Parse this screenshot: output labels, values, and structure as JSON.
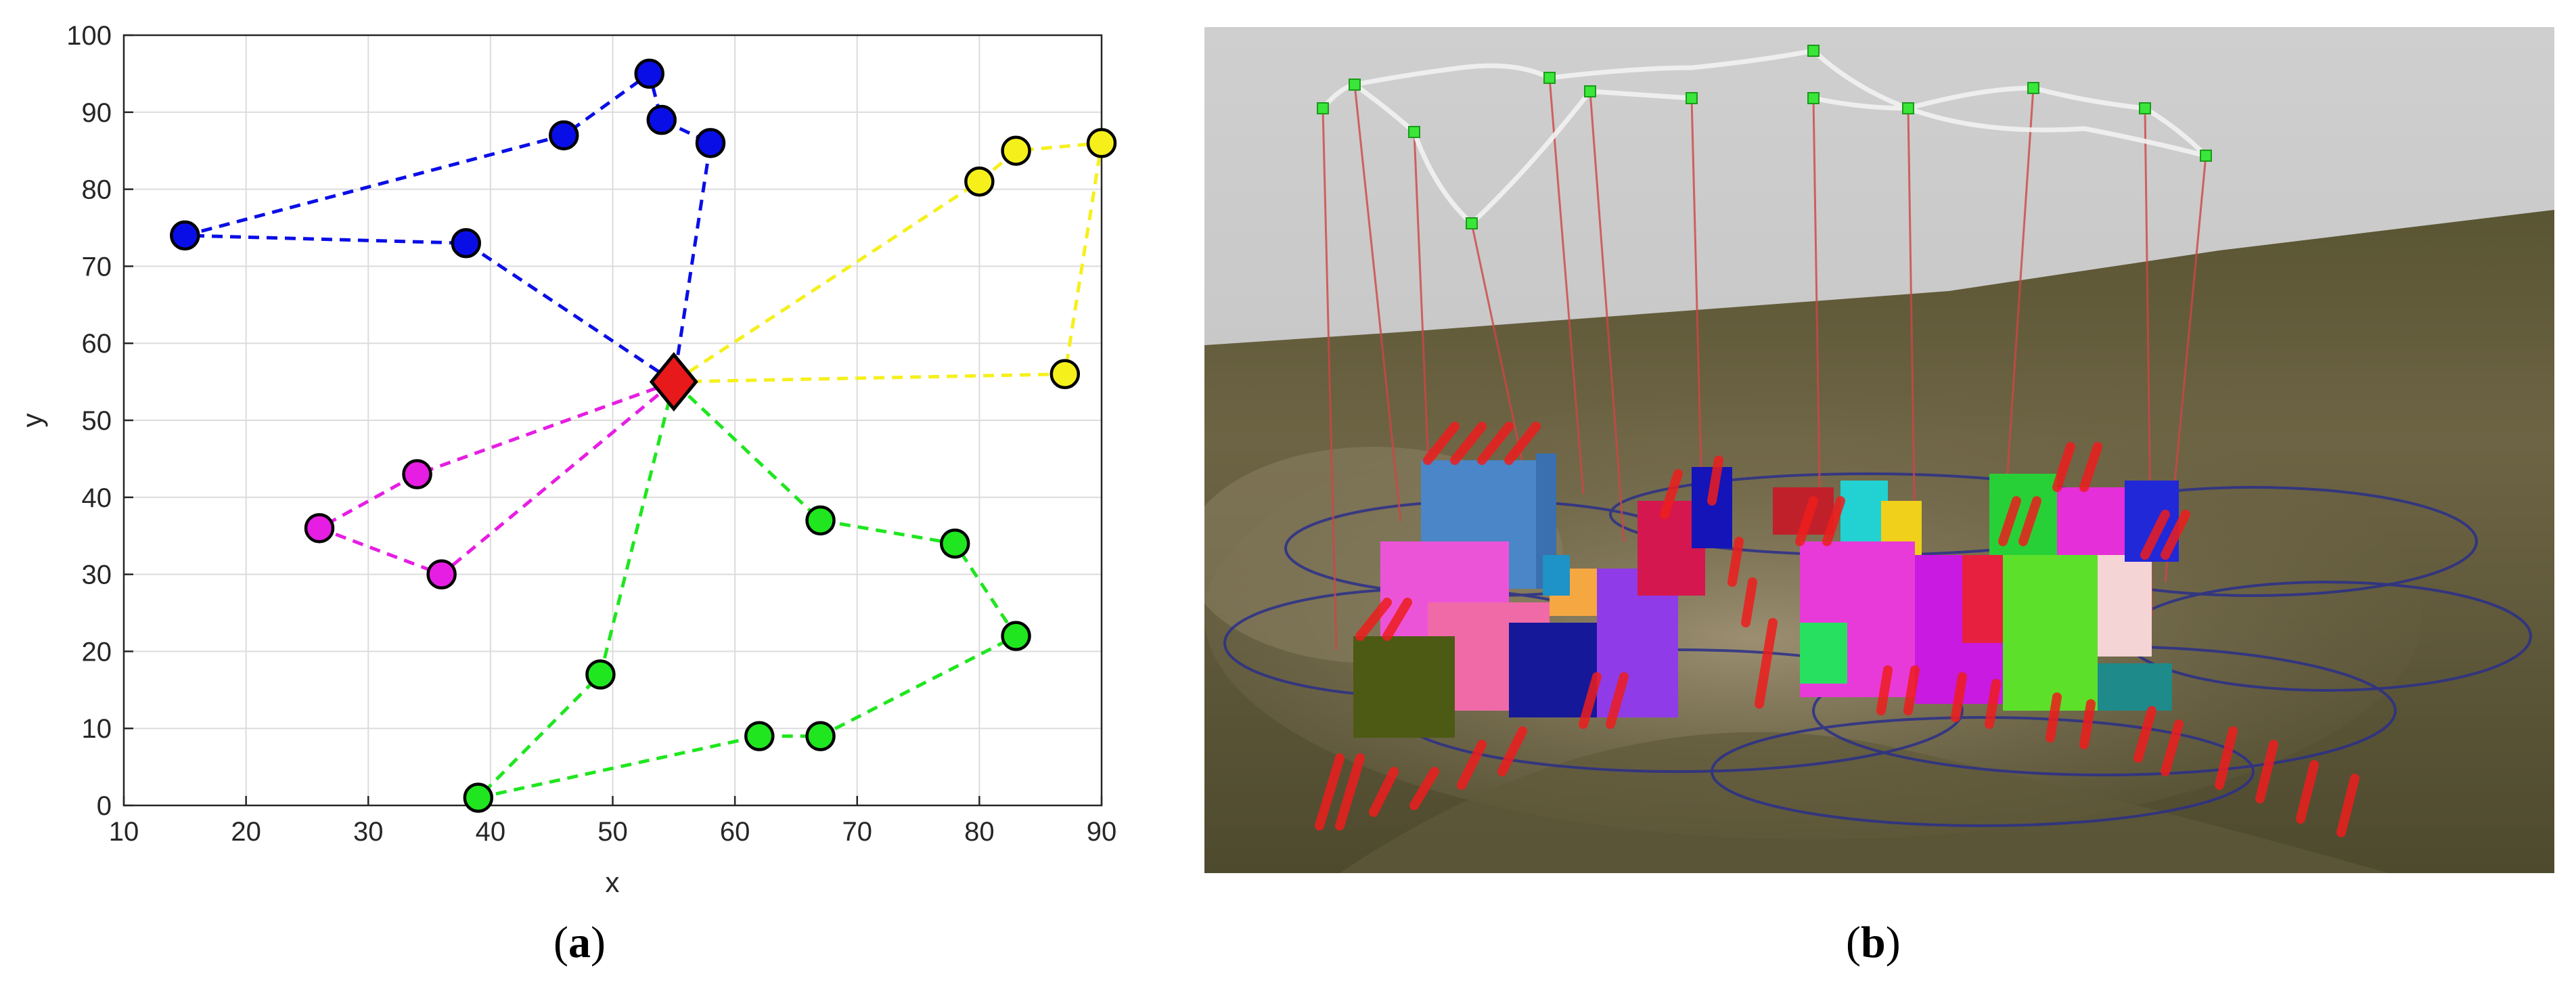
{
  "captions": {
    "a": "a",
    "b": "b",
    "open": "(",
    "close": ")"
  },
  "chart_data": {
    "type": "scatter",
    "xlabel": "x",
    "ylabel": "y",
    "xlim": [
      10,
      90
    ],
    "ylim": [
      0,
      100
    ],
    "xticks": [
      10,
      20,
      30,
      40,
      50,
      60,
      70,
      80,
      90
    ],
    "yticks": [
      0,
      10,
      20,
      30,
      40,
      50,
      60,
      70,
      80,
      90,
      100
    ],
    "grid": true,
    "depot": {
      "x": 55,
      "y": 55,
      "marker": "diamond",
      "color": "#e8191a"
    },
    "series": [
      {
        "color": "#0a0ee6",
        "line": "dashed",
        "x": [
          55,
          38,
          15,
          46,
          53,
          54,
          58,
          55
        ],
        "y": [
          55,
          73,
          74,
          87,
          95,
          89,
          86,
          55
        ]
      },
      {
        "color": "#f5f01c",
        "line": "dashed",
        "x": [
          55,
          80,
          83,
          90,
          87,
          55
        ],
        "y": [
          55,
          81,
          85,
          86,
          56,
          55
        ]
      },
      {
        "color": "#e61ee3",
        "line": "dashed",
        "x": [
          55,
          34,
          26,
          36,
          55
        ],
        "y": [
          55,
          43,
          36,
          30,
          55
        ]
      },
      {
        "color": "#1fe61f",
        "line": "dashed",
        "x": [
          55,
          49,
          39,
          62,
          67,
          83,
          78,
          67,
          55
        ],
        "y": [
          55,
          17,
          1,
          9,
          9,
          22,
          34,
          37,
          55
        ]
      }
    ]
  }
}
